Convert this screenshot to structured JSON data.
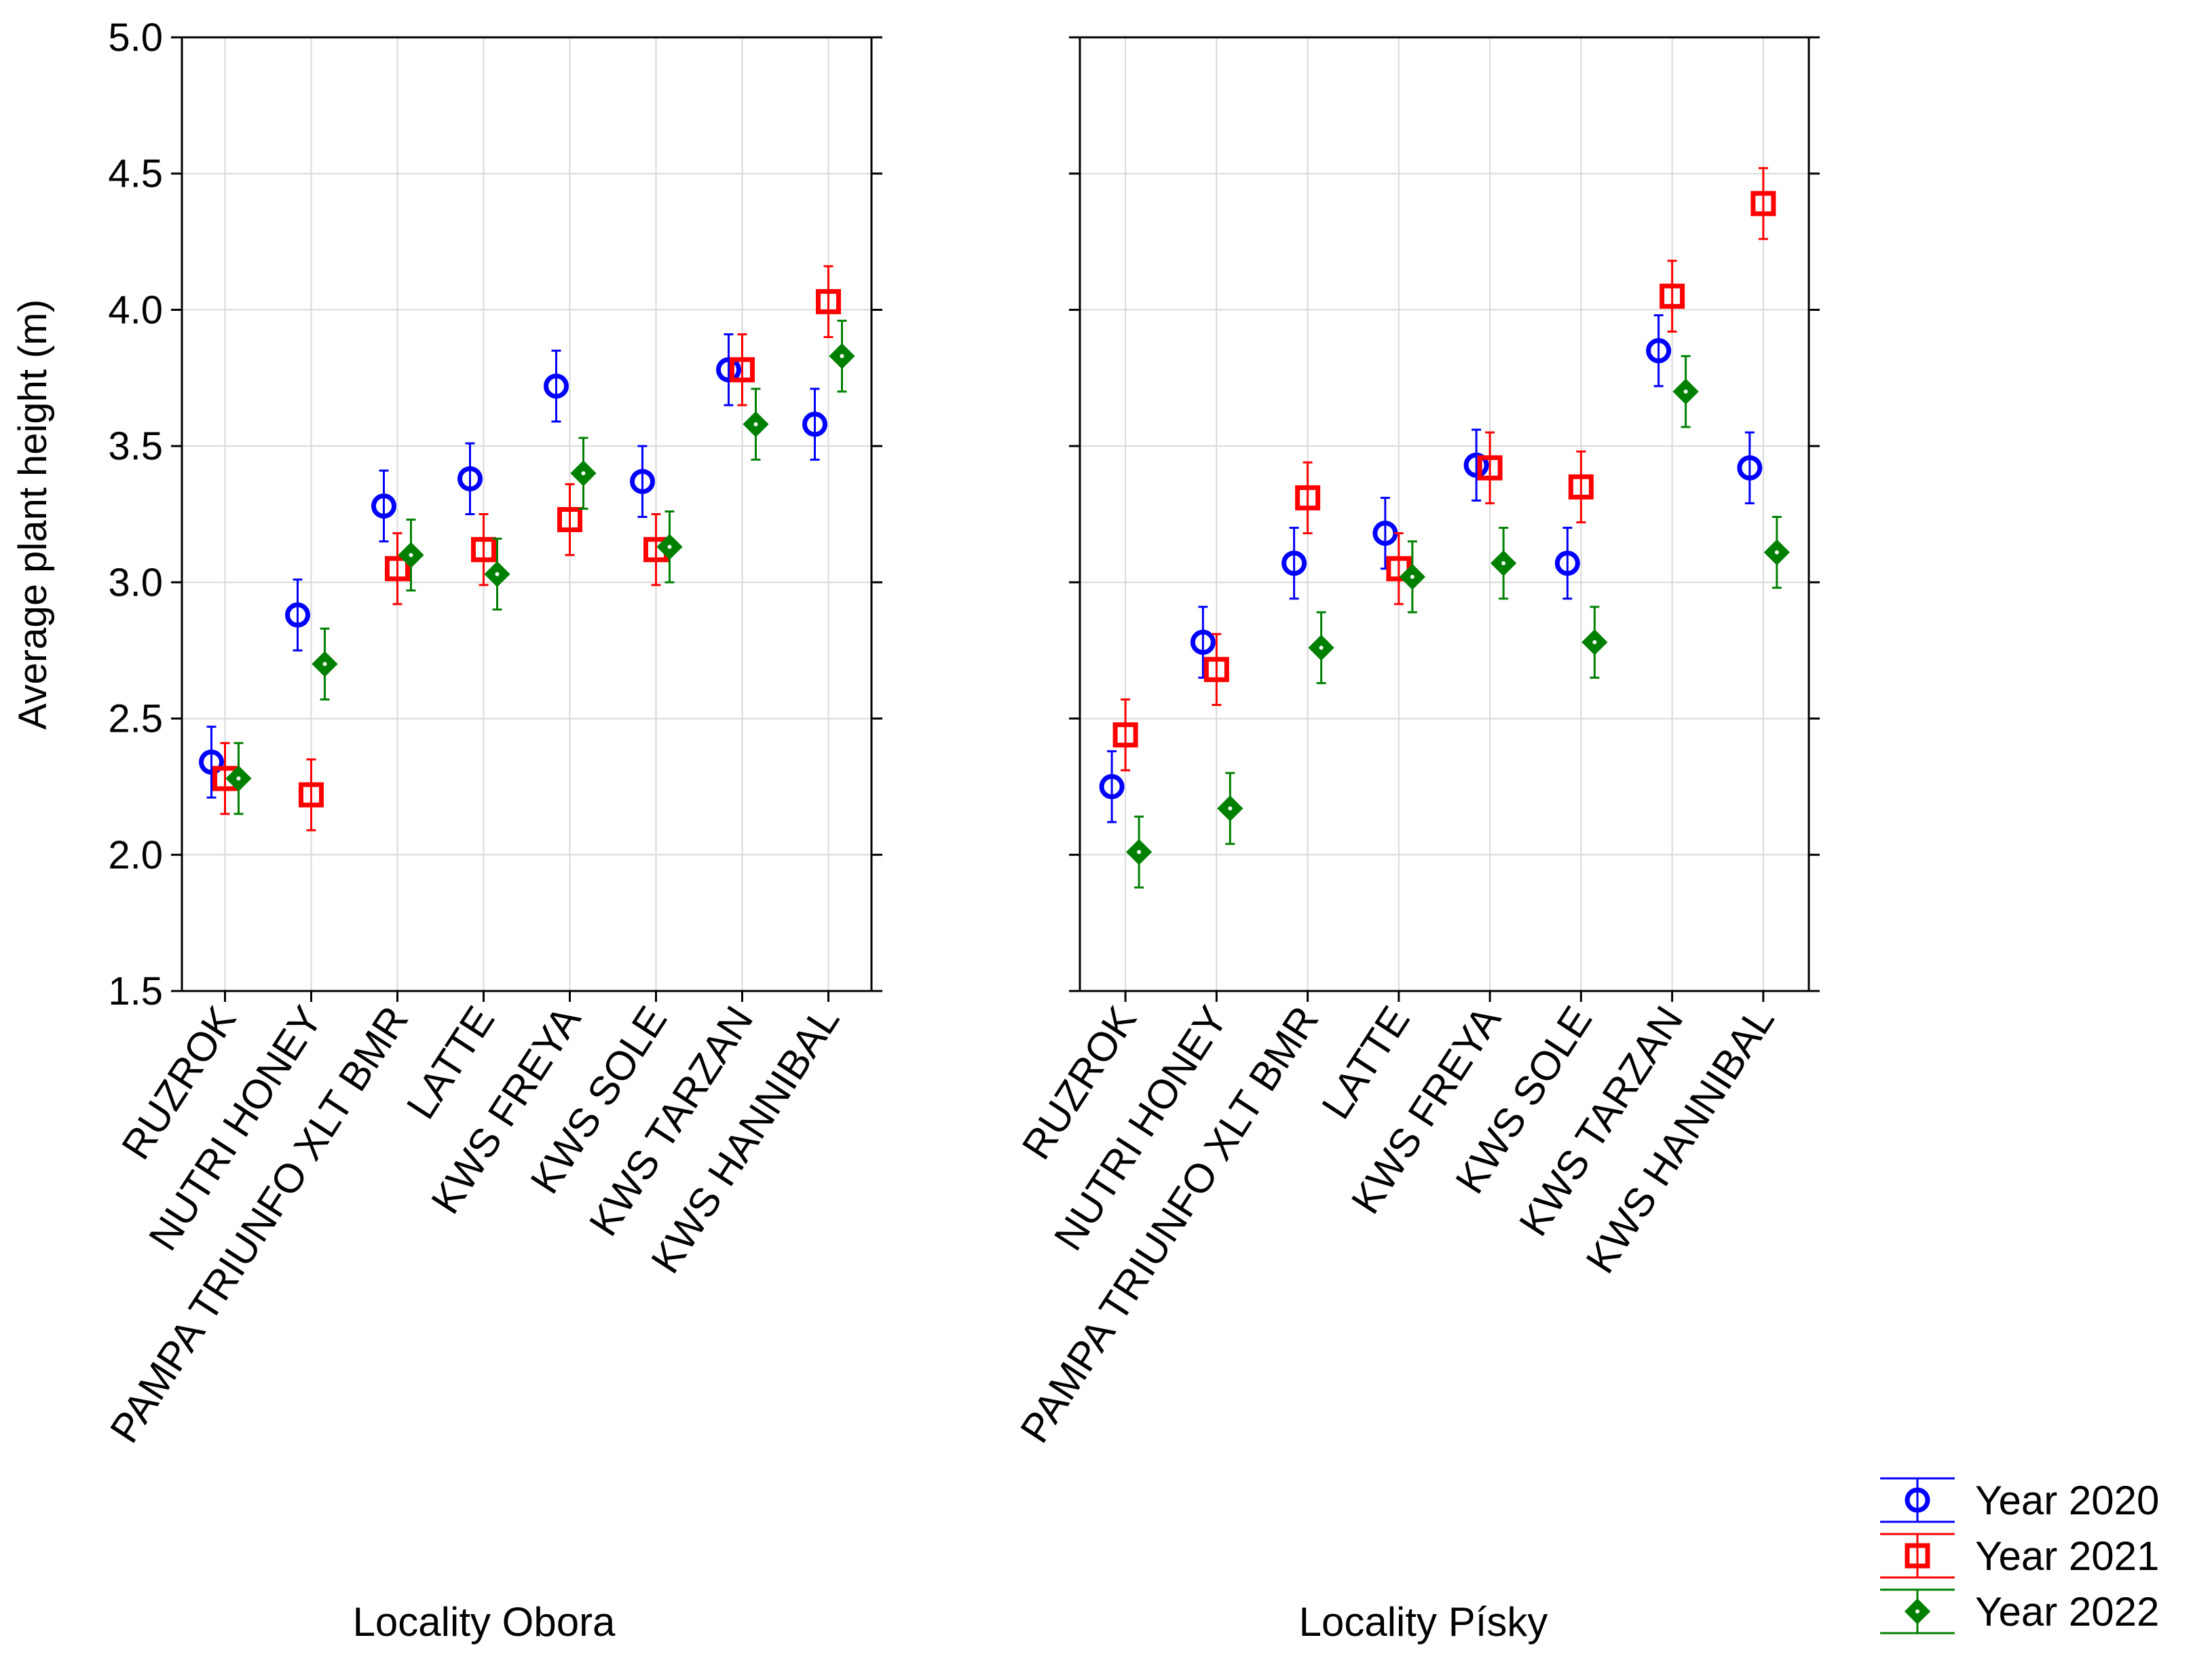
{
  "chart_data": {
    "type": "scatter",
    "subtype": "means-with-error-bars",
    "ylabel": "Average plant height (m)",
    "ylim": [
      1.5,
      5.0
    ],
    "yticks": [
      "1.5",
      "2.0",
      "2.5",
      "3.0",
      "3.5",
      "4.0",
      "4.5",
      "5.0"
    ],
    "grid": true,
    "legend_position": "bottom-right",
    "categories": [
      "RUZROK",
      "NUTRI HONEY",
      "PAMPA TRIUNFO XLT BMR",
      "LATTE",
      "KWS FREYA",
      "KWS SOLE",
      "KWS TARZAN",
      "KWS HANNIBAL"
    ],
    "panels": [
      {
        "title": "Locality Obora",
        "series": [
          {
            "name": "Year 2020",
            "color": "#0000ff",
            "marker": "circle",
            "values": [
              2.34,
              2.88,
              3.28,
              3.38,
              3.72,
              3.37,
              3.78,
              3.58
            ],
            "err": [
              0.13,
              0.13,
              0.13,
              0.13,
              0.13,
              0.13,
              0.13,
              0.13
            ]
          },
          {
            "name": "Year 2021",
            "color": "#ff0000",
            "marker": "square",
            "values": [
              2.28,
              2.22,
              3.05,
              3.12,
              3.23,
              3.12,
              3.78,
              4.03
            ],
            "err": [
              0.13,
              0.13,
              0.13,
              0.13,
              0.13,
              0.13,
              0.13,
              0.13
            ]
          },
          {
            "name": "Year 2022",
            "color": "#008000",
            "marker": "diamond",
            "values": [
              2.28,
              2.7,
              3.1,
              3.03,
              3.4,
              3.13,
              3.58,
              3.83
            ],
            "err": [
              0.13,
              0.13,
              0.13,
              0.13,
              0.13,
              0.13,
              0.13,
              0.13
            ]
          }
        ]
      },
      {
        "title": "Locality Písky",
        "series": [
          {
            "name": "Year 2020",
            "color": "#0000ff",
            "marker": "circle",
            "values": [
              2.25,
              2.78,
              3.07,
              3.18,
              3.43,
              3.07,
              3.85,
              3.42
            ],
            "err": [
              0.13,
              0.13,
              0.13,
              0.13,
              0.13,
              0.13,
              0.13,
              0.13
            ]
          },
          {
            "name": "Year 2021",
            "color": "#ff0000",
            "marker": "square",
            "values": [
              2.44,
              2.68,
              3.31,
              3.05,
              3.42,
              3.35,
              4.05,
              4.39
            ],
            "err": [
              0.13,
              0.13,
              0.13,
              0.13,
              0.13,
              0.13,
              0.13,
              0.13
            ]
          },
          {
            "name": "Year 2022",
            "color": "#008000",
            "marker": "diamond",
            "values": [
              2.01,
              2.17,
              2.76,
              3.02,
              3.07,
              2.78,
              3.7,
              3.11
            ],
            "err": [
              0.13,
              0.13,
              0.13,
              0.13,
              0.13,
              0.13,
              0.13,
              0.13
            ]
          }
        ]
      }
    ],
    "legend": [
      {
        "label": "Year 2020",
        "color": "#0000ff",
        "marker": "circle"
      },
      {
        "label": "Year 2021",
        "color": "#ff0000",
        "marker": "square"
      },
      {
        "label": "Year 2022",
        "color": "#008000",
        "marker": "diamond"
      }
    ]
  }
}
